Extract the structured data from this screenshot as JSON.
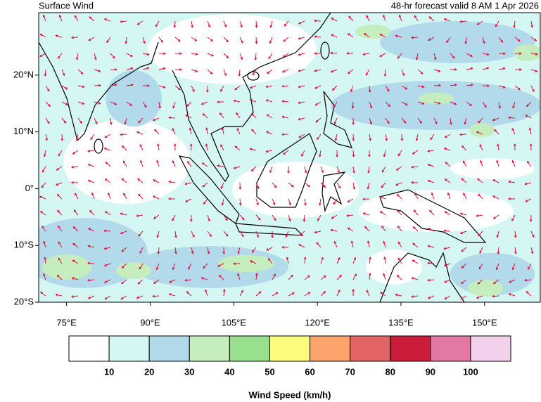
{
  "header": {
    "title": "Surface Wind",
    "valid": "48-hr forecast valid 8 AM 1 Apr 2026"
  },
  "map": {
    "lon_range": [
      70,
      160
    ],
    "lat_range": [
      -20,
      31
    ],
    "lon_ticks": [
      {
        "value": 75,
        "label": "75°E"
      },
      {
        "value": 90,
        "label": "90°E"
      },
      {
        "value": 105,
        "label": "105°E"
      },
      {
        "value": 120,
        "label": "120°E"
      },
      {
        "value": 135,
        "label": "135°E"
      },
      {
        "value": 150,
        "label": "150°E"
      }
    ],
    "lat_ticks": [
      {
        "value": 20,
        "label": "20°N"
      },
      {
        "value": 10,
        "label": "10°N"
      },
      {
        "value": 0,
        "label": "0°"
      },
      {
        "value": -10,
        "label": "10°S"
      },
      {
        "value": -20,
        "label": "20°S"
      }
    ]
  },
  "colorbar": {
    "title": "Wind Speed (km/h)",
    "levels": [
      10,
      20,
      30,
      40,
      50,
      60,
      70,
      80,
      90,
      100
    ],
    "colors": [
      "#ffffff",
      "#d4f7f3",
      "#b2daea",
      "#c6edbd",
      "#98e08e",
      "#fbfb7c",
      "#fba56d",
      "#e36464",
      "#cb1c3c",
      "#e279a5",
      "#f3d1ec"
    ]
  }
}
